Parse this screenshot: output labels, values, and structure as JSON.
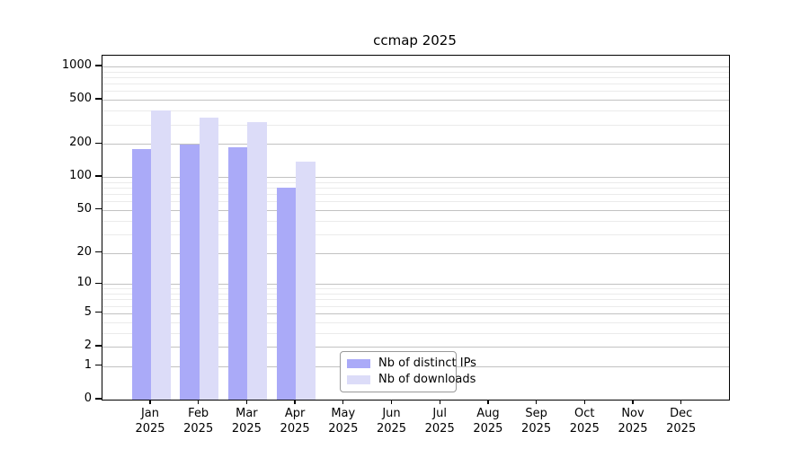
{
  "title": "ccmap 2025",
  "chart_data": {
    "type": "bar",
    "title": "ccmap 2025",
    "categories": [
      "Jan 2025",
      "Feb 2025",
      "Mar 2025",
      "Apr 2025",
      "May 2025",
      "Jun 2025",
      "Jul 2025",
      "Aug 2025",
      "Sep 2025",
      "Oct 2025",
      "Nov 2025",
      "Dec 2025"
    ],
    "series": [
      {
        "name": "Nb of distinct IPs",
        "color": "#aaaaf8",
        "values": [
          180,
          196,
          186,
          80,
          null,
          null,
          null,
          null,
          null,
          null,
          null,
          null
        ]
      },
      {
        "name": "Nb of downloads",
        "color": "#dcdcf8",
        "values": [
          400,
          345,
          315,
          137,
          null,
          null,
          null,
          null,
          null,
          null,
          null,
          null
        ]
      }
    ],
    "xlabel": "",
    "ylabel": "",
    "yscale": "log1p",
    "ylim": [
      0,
      1250
    ],
    "y_ticks": [
      0,
      1,
      2,
      5,
      10,
      20,
      50,
      100,
      200,
      500,
      1000
    ],
    "grid": "horizontal, major and minor",
    "legend_position": "lower center inside axes"
  },
  "axes": {
    "months": [
      "Jan",
      "Feb",
      "Mar",
      "Apr",
      "May",
      "Jun",
      "Jul",
      "Aug",
      "Sep",
      "Oct",
      "Nov",
      "Dec"
    ],
    "year": "2025",
    "y_tick_labels": [
      "0",
      "1",
      "2",
      "5",
      "10",
      "20",
      "50",
      "100",
      "200",
      "500",
      "1000"
    ]
  },
  "legend": {
    "items": [
      {
        "label": "Nb of distinct IPs",
        "color": "#aaaaf8"
      },
      {
        "label": "Nb of downloads",
        "color": "#dcdcf8"
      }
    ]
  },
  "colors": {
    "distinct_ips": "#aaaaf8",
    "downloads": "#dcdcf8",
    "grid_major": "#c2c2c2",
    "grid_minor": "#ebebeb",
    "axis": "#000000",
    "background": "#ffffff"
  }
}
